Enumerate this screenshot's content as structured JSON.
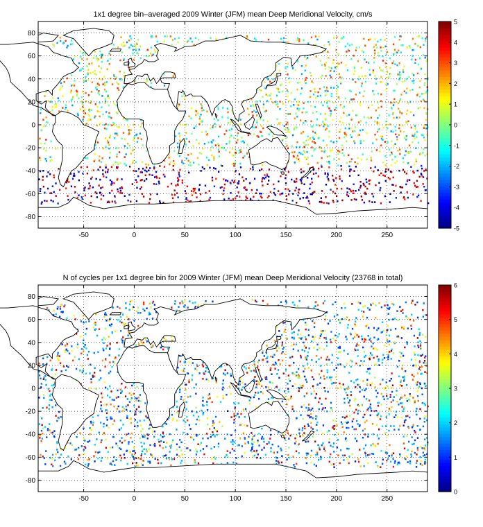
{
  "chart_data": [
    {
      "type": "heatmap",
      "title": "1x1 degree bin–averaged 2009 Winter (JFM) mean Deep Meridional Velocity, cm/s",
      "xlabel": "",
      "ylabel": "",
      "xlim": [
        -95,
        290
      ],
      "ylim": [
        -90,
        90
      ],
      "x_ticks": [
        -50,
        0,
        50,
        100,
        150,
        200,
        250
      ],
      "y_ticks": [
        -80,
        -60,
        -40,
        -20,
        0,
        20,
        40,
        60,
        80
      ],
      "grid": true,
      "colorbar": {
        "min": -5,
        "max": 5,
        "ticks": [
          -5,
          -4,
          -3,
          -2,
          -1,
          0,
          1,
          2,
          3,
          4,
          5
        ]
      },
      "colormap": "jet"
    },
    {
      "type": "heatmap",
      "title": "N of cycles per 1x1 degree bin for 2009 Winter (JFM) mean Deep Meridional Velocity (23768 in total)",
      "xlabel": "",
      "ylabel": "",
      "xlim": [
        -95,
        290
      ],
      "ylim": [
        -90,
        90
      ],
      "x_ticks": [
        -50,
        0,
        50,
        100,
        150,
        200,
        250
      ],
      "y_ticks": [
        -80,
        -60,
        -40,
        -20,
        0,
        20,
        40,
        60,
        80
      ],
      "grid": true,
      "colorbar": {
        "min": 0,
        "max": 6,
        "ticks": [
          0,
          1,
          2,
          3,
          4,
          5,
          6
        ]
      },
      "colormap": "jet"
    }
  ]
}
